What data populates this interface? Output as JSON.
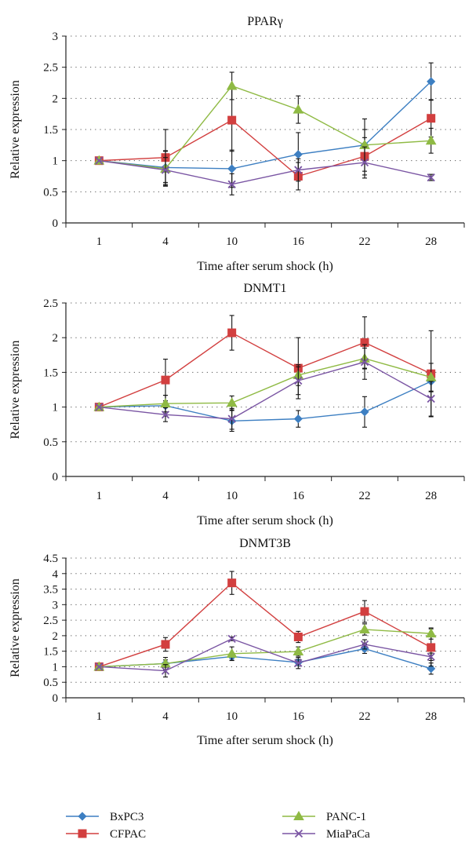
{
  "chart_data": [
    {
      "type": "line",
      "title": "PPARγ",
      "xlabel": "Time after serum shock (h)",
      "ylabel": "Relative expression",
      "categories": [
        "1",
        "4",
        "10",
        "16",
        "22",
        "28"
      ],
      "ylim": [
        0,
        3
      ],
      "yticks": [
        "0",
        "0.5",
        "1",
        "1.5",
        "2",
        "2.5",
        "3"
      ],
      "grid": "dotted horizontal",
      "series": [
        {
          "name": "BxPC3",
          "values": [
            1.0,
            0.89,
            0.87,
            1.1,
            1.25,
            2.27
          ],
          "errors": [
            0.0,
            0.27,
            0.3,
            0.35,
            0.25,
            0.3
          ]
        },
        {
          "name": "CFPAC",
          "values": [
            1.0,
            1.05,
            1.65,
            0.75,
            1.07,
            1.68
          ],
          "errors": [
            0.0,
            0.45,
            0.5,
            0.22,
            0.3,
            0.3
          ]
        },
        {
          "name": "PANC-1",
          "values": [
            1.0,
            0.87,
            2.2,
            1.82,
            1.25,
            1.32
          ],
          "errors": [
            0.0,
            0.28,
            0.22,
            0.22,
            0.42,
            0.2
          ]
        },
        {
          "name": "MiaPaCa",
          "values": [
            1.0,
            0.85,
            0.62,
            0.85,
            0.97,
            0.73
          ],
          "errors": [
            0.0,
            0.2,
            0.17,
            0.18,
            0.25,
            0.05
          ]
        }
      ]
    },
    {
      "type": "line",
      "title": "DNMT1",
      "xlabel": "Time after serum shock (h)",
      "ylabel": "Relative expression",
      "categories": [
        "1",
        "4",
        "10",
        "16",
        "22",
        "28"
      ],
      "ylim": [
        0,
        2.5
      ],
      "yticks": [
        "0",
        "0.5",
        "1",
        "1.5",
        "2",
        "2.5"
      ],
      "grid": "dotted horizontal",
      "series": [
        {
          "name": "BxPC3",
          "values": [
            1.0,
            1.02,
            0.8,
            0.83,
            0.93,
            1.37
          ],
          "errors": [
            0.0,
            0.15,
            0.15,
            0.12,
            0.22,
            0.15
          ]
        },
        {
          "name": "CFPAC",
          "values": [
            1.0,
            1.39,
            2.07,
            1.56,
            1.93,
            1.48
          ],
          "errors": [
            0.0,
            0.3,
            0.25,
            0.44,
            0.37,
            0.62
          ]
        },
        {
          "name": "PANC-1",
          "values": [
            1.0,
            1.05,
            1.06,
            1.46,
            1.7,
            1.43
          ],
          "errors": [
            0.0,
            0.12,
            0.1,
            0.15,
            0.15,
            0.2
          ]
        },
        {
          "name": "MiaPaCa",
          "values": [
            1.0,
            0.89,
            0.83,
            1.38,
            1.65,
            1.12
          ],
          "errors": [
            0.0,
            0.1,
            0.15,
            0.2,
            0.25,
            0.25
          ]
        }
      ]
    },
    {
      "type": "line",
      "title": "DNMT3B",
      "xlabel": "Time after serum shock (h)",
      "ylabel": "Relative expression",
      "categories": [
        "1",
        "4",
        "10",
        "16",
        "22",
        "28"
      ],
      "ylim": [
        0,
        4.5
      ],
      "yticks": [
        "0",
        "0.5",
        "1",
        "1.5",
        "2",
        "2.5",
        "3",
        "3.5",
        "4",
        "4.5"
      ],
      "grid": "dotted horizontal",
      "series": [
        {
          "name": "BxPC3",
          "values": [
            1.0,
            1.1,
            1.33,
            1.14,
            1.58,
            0.94
          ],
          "errors": [
            0.0,
            0.2,
            0.12,
            0.1,
            0.15,
            0.18
          ]
        },
        {
          "name": "CFPAC",
          "values": [
            1.0,
            1.72,
            3.7,
            1.96,
            2.78,
            1.62
          ],
          "errors": [
            0.0,
            0.22,
            0.37,
            0.18,
            0.35,
            0.6
          ]
        },
        {
          "name": "PANC-1",
          "values": [
            1.0,
            1.1,
            1.42,
            1.49,
            2.2,
            2.07
          ],
          "errors": [
            0.0,
            0.12,
            0.22,
            0.15,
            0.18,
            0.18
          ]
        },
        {
          "name": "MiaPaCa",
          "values": [
            1.0,
            0.87,
            1.9,
            1.12,
            1.72,
            1.32
          ],
          "errors": [
            0.0,
            0.2,
            0.06,
            0.18,
            0.15,
            0.12
          ]
        }
      ]
    }
  ],
  "legend": {
    "placement": "bottom",
    "items": [
      {
        "name": "BxPC3",
        "color": "#3d7fc2",
        "marker": "diamond"
      },
      {
        "name": "PANC-1",
        "color": "#8fba44",
        "marker": "triangle"
      },
      {
        "name": "CFPAC",
        "color": "#d23f3f",
        "marker": "square"
      },
      {
        "name": "MiaPaCa",
        "color": "#7a55a3",
        "marker": "x"
      }
    ]
  }
}
